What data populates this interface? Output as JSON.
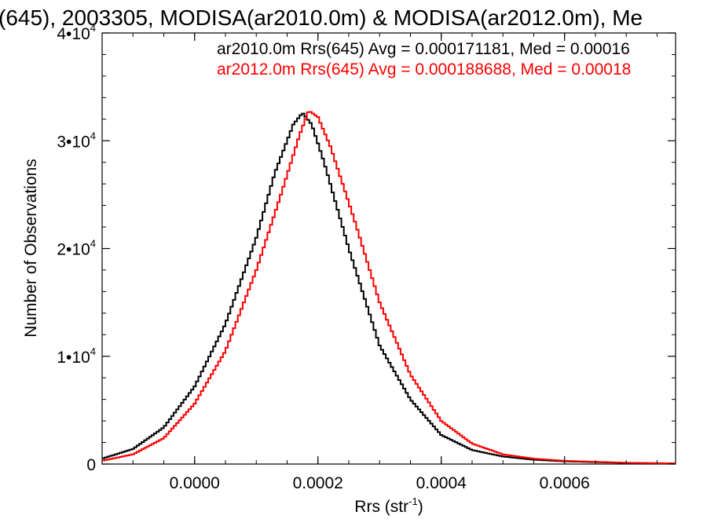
{
  "chart_data": {
    "type": "line",
    "step": true,
    "title": "(645), 2003305, MODISA(ar2010.0m) & MODISA(ar2012.0m), Me",
    "xlabel_main": "Rrs (str",
    "xlabel_sup": "-1",
    "xlabel_tail": ")",
    "ylabel": "Number of Observations",
    "xlim": [
      -0.00015,
      0.00078
    ],
    "ylim": [
      0,
      40000
    ],
    "x_ticks": [
      {
        "value": 0.0,
        "label": "0.0000"
      },
      {
        "value": 0.0002,
        "label": "0.0002"
      },
      {
        "value": 0.0004,
        "label": "0.0004"
      },
      {
        "value": 0.0006,
        "label": "0.0006"
      }
    ],
    "y_ticks": [
      {
        "value": 0,
        "label": "0"
      },
      {
        "value": 10000,
        "label": "1•10",
        "sup": "4"
      },
      {
        "value": 20000,
        "label": "2•10",
        "sup": "4"
      },
      {
        "value": 30000,
        "label": "3•10",
        "sup": "4"
      },
      {
        "value": 40000,
        "label": "4•10",
        "sup": "4"
      }
    ],
    "annotations": [
      {
        "text": "ar2010.0m Rrs(645) Avg = 0.000171181, Med = 0.00016",
        "color": "#000000"
      },
      {
        "text": "ar2012.0m Rrs(645) Avg = 0.000188688, Med = 0.00018",
        "color": "#ff0000"
      }
    ],
    "series": [
      {
        "color": "#000000",
        "x": [
          -0.00015,
          -0.0001,
          -5e-05,
          0.0,
          5e-05,
          0.0001,
          0.00013,
          0.00016,
          0.000175,
          0.00019,
          0.00021,
          0.00025,
          0.0003,
          0.00035,
          0.0004,
          0.00045,
          0.0005,
          0.00055,
          0.0006,
          0.0007,
          0.00078
        ],
        "y": [
          500,
          1400,
          3400,
          7200,
          13000,
          21000,
          27000,
          31500,
          32600,
          31500,
          28000,
          20000,
          11000,
          6000,
          2700,
          1300,
          700,
          400,
          250,
          100,
          50
        ]
      },
      {
        "color": "#ff0000",
        "x": [
          -0.00015,
          -0.0001,
          -5e-05,
          0.0,
          5e-05,
          0.0001,
          0.00014,
          0.00017,
          0.000185,
          0.0002,
          0.00022,
          0.00026,
          0.0003,
          0.00035,
          0.0004,
          0.00045,
          0.0005,
          0.00055,
          0.0006,
          0.0007,
          0.00078
        ],
        "y": [
          300,
          900,
          2400,
          5600,
          10500,
          18000,
          25000,
          30500,
          32800,
          32200,
          29500,
          22500,
          15000,
          8300,
          4000,
          1900,
          900,
          500,
          300,
          120,
          60
        ]
      }
    ]
  }
}
